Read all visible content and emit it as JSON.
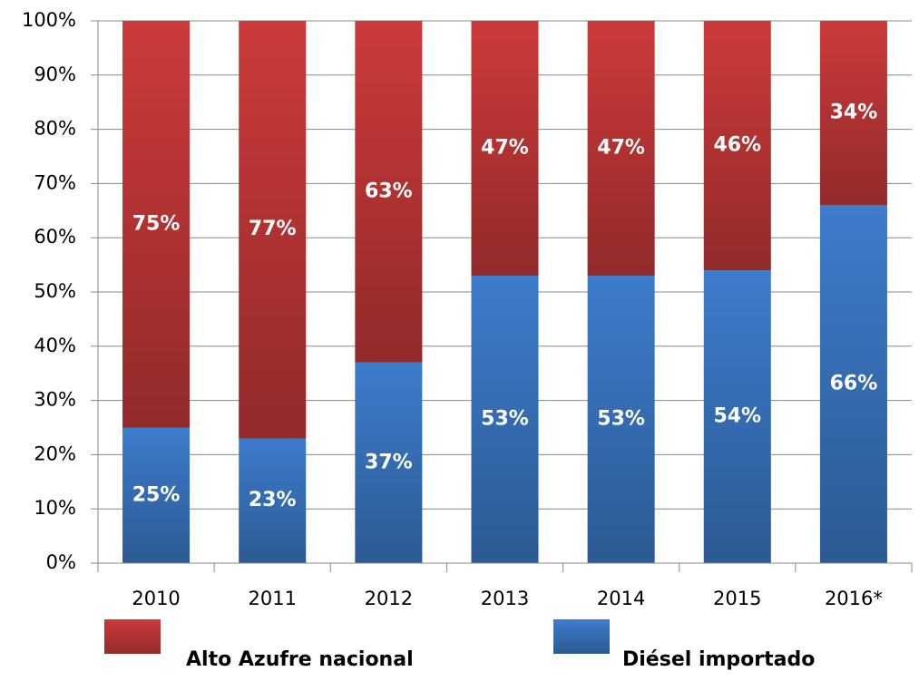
{
  "chart_data": {
    "type": "stacked_bar",
    "categories": [
      "2010",
      "2011",
      "2012",
      "2013",
      "2014",
      "2015",
      "2016*"
    ],
    "series": [
      {
        "name": "Diésel importado",
        "color": "#3d7ccc",
        "values": [
          25,
          23,
          37,
          53,
          53,
          54,
          66
        ],
        "value_labels": [
          "25%",
          "23%",
          "37%",
          "53%",
          "53%",
          "54%",
          "66%"
        ]
      },
      {
        "name": "Alto Azufre nacional",
        "color": "#cc3a3a",
        "values": [
          75,
          77,
          63,
          47,
          47,
          46,
          34
        ],
        "value_labels": [
          "75%",
          "77%",
          "63%",
          "47%",
          "47%",
          "46%",
          "34%"
        ]
      }
    ],
    "ylim": [
      0,
      100
    ],
    "yticks": [
      {
        "value": 0,
        "label": "0%"
      },
      {
        "value": 10,
        "label": "10%"
      },
      {
        "value": 20,
        "label": "20%"
      },
      {
        "value": 30,
        "label": "30%"
      },
      {
        "value": 40,
        "label": "40%"
      },
      {
        "value": 50,
        "label": "50%"
      },
      {
        "value": 60,
        "label": "60%"
      },
      {
        "value": 70,
        "label": "70%"
      },
      {
        "value": 80,
        "label": "80%"
      },
      {
        "value": 90,
        "label": "90%"
      },
      {
        "value": 100,
        "label": "100%"
      }
    ],
    "grid": true,
    "legend": "bottom"
  }
}
